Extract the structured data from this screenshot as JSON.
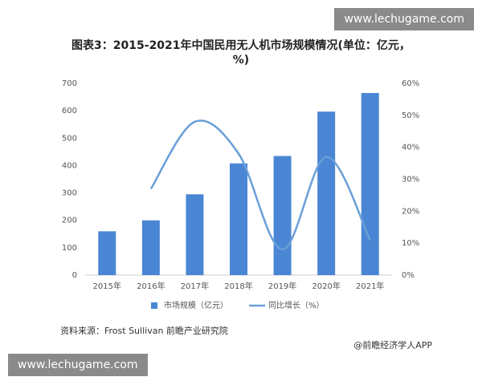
{
  "header": {
    "watermark_top": "www.lechugame.com",
    "watermark_bottom": "www.lechugame.com"
  },
  "chart_data": {
    "type": "bar-line",
    "title": "图表3：2015-2021年中国民用无人机市场规模情况(单位：亿元，%)",
    "categories": [
      "2015年",
      "2016年",
      "2017年",
      "2018年",
      "2019年",
      "2020年",
      "2021年"
    ],
    "series": [
      {
        "name": "市场规模（亿元）",
        "color": "#4a86d4",
        "type": "bar",
        "values": [
          160,
          200,
          295,
          408,
          435,
          597,
          665
        ]
      },
      {
        "name": "同比增长（%）",
        "color": "#6a9fd8",
        "type": "line",
        "axis": "y2",
        "values": [
          null,
          27,
          48,
          38,
          8,
          37,
          11
        ]
      }
    ],
    "ylim": [
      0,
      700
    ],
    "yticks": [
      0,
      100,
      200,
      300,
      400,
      500,
      600,
      700
    ],
    "y2lim": [
      0,
      60
    ],
    "y2ticks": [
      {
        "value": 0,
        "label": "0%"
      },
      {
        "value": 10,
        "label": "10%"
      },
      {
        "value": 20,
        "label": "20%"
      },
      {
        "value": 30,
        "label": "30%"
      },
      {
        "value": 40,
        "label": "40%"
      },
      {
        "value": 50,
        "label": "50%"
      },
      {
        "value": 60,
        "label": "60%"
      }
    ],
    "grid": false,
    "legend": "bottom"
  },
  "footer": {
    "source": "资料来源：Frost Sullivan 前瞻产业研究院",
    "credit": "@前瞻经济学人APP"
  }
}
